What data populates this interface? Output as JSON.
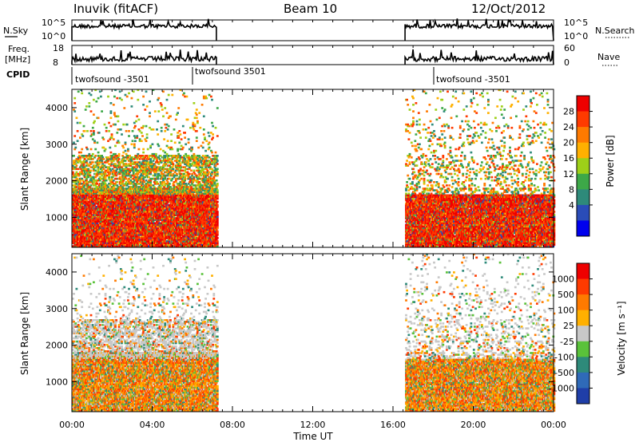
{
  "header": {
    "station": "Inuvik (fitACF)",
    "beam": "Beam 10",
    "date": "12/Oct/2012"
  },
  "chart_data": [
    {
      "type": "line",
      "name_left": "N.Sky",
      "name_right": "N.Search",
      "left_ticks": [
        "10^5",
        "10^0"
      ],
      "right_ticks": [
        "10^5",
        "10^0"
      ],
      "x_ticks": [
        "00:00",
        "04:00",
        "08:00",
        "12:00",
        "16:00",
        "20:00",
        "00:00"
      ],
      "xlim_hours": [
        0,
        24
      ],
      "segments_hours": [
        [
          0,
          7.2
        ],
        [
          16.6,
          24
        ]
      ],
      "level_fraction": 0.7
    },
    {
      "type": "line",
      "name_left": "Freq.",
      "name_left_unit": "[MHz]",
      "name_right": "Nave",
      "left_ticks": [
        "18",
        "8"
      ],
      "right_ticks": [
        "60",
        "0"
      ],
      "ylim_left": [
        8,
        18
      ],
      "ylim_right": [
        0,
        60
      ],
      "segments_hours": [
        [
          0,
          7.2
        ],
        [
          16.6,
          24
        ]
      ],
      "level_fraction": 0.3
    },
    {
      "type": "table",
      "title": "CPID",
      "entries": [
        {
          "label": "twofsound -3501",
          "start_hours": 0
        },
        {
          "label": "twofsound 3501",
          "start_hours": 6
        },
        {
          "label": "twofsound -3501",
          "start_hours": 18
        }
      ]
    },
    {
      "type": "heatmap",
      "ylabel": "Slant Range [km]",
      "ylim": [
        180,
        4500
      ],
      "yticks": [
        "1000",
        "2000",
        "3000",
        "4000"
      ],
      "ytick_values": [
        1000,
        2000,
        3000,
        4000
      ],
      "xlim_hours": [
        0,
        24
      ],
      "colorbar_label": "Power [dB]",
      "colorbar_ticks": [
        "28",
        "24",
        "20",
        "16",
        "12",
        "8",
        "4"
      ],
      "colorbar_colors": [
        "#0000ee",
        "#2a4cb8",
        "#2e8a7a",
        "#3da848",
        "#9ed018",
        "#ffb000",
        "#ff7a00",
        "#ff3a00",
        "#ee0000"
      ],
      "data_windows_hours": [
        [
          0,
          7.2
        ],
        [
          16.6,
          24
        ]
      ]
    },
    {
      "type": "heatmap",
      "ylabel": "Slant Range [km]",
      "ylim": [
        180,
        4500
      ],
      "yticks": [
        "1000",
        "2000",
        "3000",
        "4000"
      ],
      "ytick_values": [
        1000,
        2000,
        3000,
        4000
      ],
      "xlim_hours": [
        0,
        24
      ],
      "xlabel": "Time UT",
      "x_ticks": [
        "00:00",
        "04:00",
        "08:00",
        "12:00",
        "16:00",
        "20:00",
        "00:00"
      ],
      "colorbar_label": "Velocity [m s⁻¹]",
      "colorbar_ticks": [
        "1000",
        "500",
        "100",
        "25",
        "-25",
        "-100",
        "-500",
        "-1000"
      ],
      "colorbar_colors": [
        "#1f3ea8",
        "#2f6ab8",
        "#2e8a7a",
        "#5ac23a",
        "#c8c8c8",
        "#ffb000",
        "#ff7a00",
        "#ff3a00",
        "#ee0000"
      ],
      "data_windows_hours": [
        [
          0,
          7.2
        ],
        [
          16.6,
          24
        ]
      ]
    }
  ]
}
